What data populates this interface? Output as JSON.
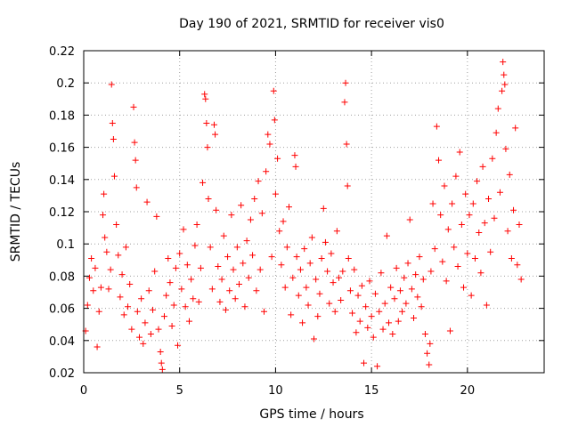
{
  "chart_data": {
    "type": "scatter",
    "title": "Day 190 of 2021, SRMTID for receiver vis0",
    "xlabel": "GPS time / hours",
    "ylabel": "SRMTID / TECUs",
    "xlim": [
      0,
      24
    ],
    "ylim": [
      0.02,
      0.22
    ],
    "xticks": [
      0,
      5,
      10,
      15,
      20
    ],
    "xtick_labels": [
      "0",
      "5",
      "10",
      "15",
      "20"
    ],
    "yticks": [
      0.02,
      0.04,
      0.06,
      0.08,
      0.1,
      0.12,
      0.14,
      0.16,
      0.18,
      0.2,
      0.22
    ],
    "ytick_labels": [
      "0.02",
      "0.04",
      "0.06",
      "0.08",
      "0.1",
      "0.12",
      "0.14",
      "0.16",
      "0.18",
      "0.2",
      "0.22"
    ],
    "grid": true,
    "marker": "+",
    "color": "#ff0000",
    "series": [
      {
        "name": "SRMTID",
        "points": [
          [
            0.1,
            0.046
          ],
          [
            0.2,
            0.062
          ],
          [
            0.3,
            0.079
          ],
          [
            0.4,
            0.091
          ],
          [
            0.5,
            0.071
          ],
          [
            0.6,
            0.085
          ],
          [
            0.7,
            0.036
          ],
          [
            0.8,
            0.058
          ],
          [
            0.9,
            0.073
          ],
          [
            1.0,
            0.118
          ],
          [
            1.05,
            0.131
          ],
          [
            1.1,
            0.104
          ],
          [
            1.2,
            0.095
          ],
          [
            1.3,
            0.072
          ],
          [
            1.4,
            0.084
          ],
          [
            1.5,
            0.175
          ],
          [
            1.45,
            0.199
          ],
          [
            1.55,
            0.165
          ],
          [
            1.6,
            0.142
          ],
          [
            1.7,
            0.112
          ],
          [
            1.8,
            0.093
          ],
          [
            1.9,
            0.067
          ],
          [
            2.0,
            0.081
          ],
          [
            2.1,
            0.056
          ],
          [
            2.2,
            0.098
          ],
          [
            2.3,
            0.061
          ],
          [
            2.4,
            0.075
          ],
          [
            2.5,
            0.047
          ],
          [
            2.6,
            0.185
          ],
          [
            2.65,
            0.163
          ],
          [
            2.7,
            0.152
          ],
          [
            2.75,
            0.135
          ],
          [
            2.8,
            0.058
          ],
          [
            2.9,
            0.042
          ],
          [
            3.0,
            0.066
          ],
          [
            3.1,
            0.038
          ],
          [
            3.2,
            0.051
          ],
          [
            3.3,
            0.126
          ],
          [
            3.4,
            0.071
          ],
          [
            3.5,
            0.044
          ],
          [
            3.6,
            0.059
          ],
          [
            3.7,
            0.083
          ],
          [
            3.8,
            0.117
          ],
          [
            3.9,
            0.047
          ],
          [
            4.0,
            0.033
          ],
          [
            4.05,
            0.026
          ],
          [
            4.1,
            0.022
          ],
          [
            4.2,
            0.055
          ],
          [
            4.3,
            0.068
          ],
          [
            4.4,
            0.091
          ],
          [
            4.5,
            0.076
          ],
          [
            4.6,
            0.049
          ],
          [
            4.7,
            0.062
          ],
          [
            4.8,
            0.085
          ],
          [
            4.9,
            0.037
          ],
          [
            5.0,
            0.094
          ],
          [
            5.1,
            0.072
          ],
          [
            5.2,
            0.109
          ],
          [
            5.3,
            0.061
          ],
          [
            5.4,
            0.087
          ],
          [
            5.5,
            0.052
          ],
          [
            5.6,
            0.078
          ],
          [
            5.7,
            0.066
          ],
          [
            5.8,
            0.099
          ],
          [
            5.9,
            0.112
          ],
          [
            6.0,
            0.064
          ],
          [
            6.1,
            0.085
          ],
          [
            6.2,
            0.138
          ],
          [
            6.3,
            0.193
          ],
          [
            6.35,
            0.19
          ],
          [
            6.4,
            0.175
          ],
          [
            6.45,
            0.16
          ],
          [
            6.5,
            0.128
          ],
          [
            6.6,
            0.098
          ],
          [
            6.7,
            0.072
          ],
          [
            6.8,
            0.174
          ],
          [
            6.85,
            0.168
          ],
          [
            6.9,
            0.121
          ],
          [
            7.0,
            0.086
          ],
          [
            7.1,
            0.064
          ],
          [
            7.2,
            0.078
          ],
          [
            7.3,
            0.105
          ],
          [
            7.4,
            0.059
          ],
          [
            7.5,
            0.092
          ],
          [
            7.6,
            0.071
          ],
          [
            7.7,
            0.118
          ],
          [
            7.8,
            0.084
          ],
          [
            7.9,
            0.066
          ],
          [
            8.0,
            0.098
          ],
          [
            8.1,
            0.075
          ],
          [
            8.2,
            0.124
          ],
          [
            8.3,
            0.088
          ],
          [
            8.4,
            0.061
          ],
          [
            8.5,
            0.102
          ],
          [
            8.6,
            0.079
          ],
          [
            8.7,
            0.115
          ],
          [
            8.8,
            0.093
          ],
          [
            8.9,
            0.128
          ],
          [
            9.0,
            0.071
          ],
          [
            9.1,
            0.139
          ],
          [
            9.2,
            0.084
          ],
          [
            9.3,
            0.119
          ],
          [
            9.4,
            0.058
          ],
          [
            9.5,
            0.145
          ],
          [
            9.6,
            0.168
          ],
          [
            9.7,
            0.162
          ],
          [
            9.8,
            0.092
          ],
          [
            9.9,
            0.195
          ],
          [
            9.95,
            0.177
          ],
          [
            10.0,
            0.131
          ],
          [
            10.1,
            0.153
          ],
          [
            10.2,
            0.108
          ],
          [
            10.3,
            0.087
          ],
          [
            10.4,
            0.114
          ],
          [
            10.5,
            0.073
          ],
          [
            10.6,
            0.098
          ],
          [
            10.7,
            0.123
          ],
          [
            10.8,
            0.056
          ],
          [
            10.9,
            0.079
          ],
          [
            11.0,
            0.155
          ],
          [
            11.05,
            0.148
          ],
          [
            11.1,
            0.092
          ],
          [
            11.2,
            0.068
          ],
          [
            11.3,
            0.084
          ],
          [
            11.4,
            0.051
          ],
          [
            11.5,
            0.097
          ],
          [
            11.6,
            0.073
          ],
          [
            11.7,
            0.062
          ],
          [
            11.8,
            0.088
          ],
          [
            11.9,
            0.104
          ],
          [
            12.0,
            0.041
          ],
          [
            12.1,
            0.078
          ],
          [
            12.2,
            0.055
          ],
          [
            12.3,
            0.069
          ],
          [
            12.4,
            0.091
          ],
          [
            12.5,
            0.122
          ],
          [
            12.6,
            0.101
          ],
          [
            12.7,
            0.083
          ],
          [
            12.8,
            0.063
          ],
          [
            12.9,
            0.094
          ],
          [
            13.0,
            0.076
          ],
          [
            13.1,
            0.058
          ],
          [
            13.2,
            0.108
          ],
          [
            13.3,
            0.079
          ],
          [
            13.4,
            0.065
          ],
          [
            13.5,
            0.083
          ],
          [
            13.6,
            0.188
          ],
          [
            13.65,
            0.2
          ],
          [
            13.7,
            0.162
          ],
          [
            13.75,
            0.136
          ],
          [
            13.8,
            0.091
          ],
          [
            13.9,
            0.071
          ],
          [
            14.0,
            0.057
          ],
          [
            14.1,
            0.084
          ],
          [
            14.2,
            0.045
          ],
          [
            14.3,
            0.068
          ],
          [
            14.4,
            0.052
          ],
          [
            14.5,
            0.074
          ],
          [
            14.6,
            0.026
          ],
          [
            14.7,
            0.061
          ],
          [
            14.8,
            0.048
          ],
          [
            14.9,
            0.077
          ],
          [
            15.0,
            0.055
          ],
          [
            15.1,
            0.042
          ],
          [
            15.2,
            0.069
          ],
          [
            15.3,
            0.024
          ],
          [
            15.4,
            0.058
          ],
          [
            15.5,
            0.082
          ],
          [
            15.6,
            0.047
          ],
          [
            15.7,
            0.063
          ],
          [
            15.8,
            0.105
          ],
          [
            15.9,
            0.051
          ],
          [
            16.0,
            0.073
          ],
          [
            16.1,
            0.044
          ],
          [
            16.2,
            0.066
          ],
          [
            16.3,
            0.085
          ],
          [
            16.4,
            0.052
          ],
          [
            16.5,
            0.071
          ],
          [
            16.6,
            0.058
          ],
          [
            16.7,
            0.079
          ],
          [
            16.8,
            0.063
          ],
          [
            16.9,
            0.088
          ],
          [
            17.0,
            0.115
          ],
          [
            17.1,
            0.072
          ],
          [
            17.2,
            0.054
          ],
          [
            17.3,
            0.081
          ],
          [
            17.4,
            0.067
          ],
          [
            17.5,
            0.092
          ],
          [
            17.6,
            0.061
          ],
          [
            17.7,
            0.078
          ],
          [
            17.8,
            0.044
          ],
          [
            17.9,
            0.032
          ],
          [
            18.0,
            0.025
          ],
          [
            18.05,
            0.038
          ],
          [
            18.1,
            0.083
          ],
          [
            18.2,
            0.125
          ],
          [
            18.3,
            0.097
          ],
          [
            18.4,
            0.173
          ],
          [
            18.5,
            0.152
          ],
          [
            18.6,
            0.118
          ],
          [
            18.7,
            0.089
          ],
          [
            18.8,
            0.136
          ],
          [
            18.9,
            0.077
          ],
          [
            19.0,
            0.109
          ],
          [
            19.1,
            0.046
          ],
          [
            19.2,
            0.125
          ],
          [
            19.3,
            0.098
          ],
          [
            19.4,
            0.142
          ],
          [
            19.5,
            0.086
          ],
          [
            19.6,
            0.157
          ],
          [
            19.7,
            0.112
          ],
          [
            19.8,
            0.073
          ],
          [
            19.9,
            0.131
          ],
          [
            20.0,
            0.094
          ],
          [
            20.1,
            0.118
          ],
          [
            20.2,
            0.068
          ],
          [
            20.3,
            0.125
          ],
          [
            20.4,
            0.091
          ],
          [
            20.5,
            0.139
          ],
          [
            20.6,
            0.107
          ],
          [
            20.7,
            0.082
          ],
          [
            20.8,
            0.148
          ],
          [
            20.9,
            0.113
          ],
          [
            21.0,
            0.062
          ],
          [
            21.1,
            0.128
          ],
          [
            21.2,
            0.095
          ],
          [
            21.3,
            0.153
          ],
          [
            21.4,
            0.116
          ],
          [
            21.5,
            0.169
          ],
          [
            21.6,
            0.184
          ],
          [
            21.7,
            0.132
          ],
          [
            21.8,
            0.195
          ],
          [
            21.85,
            0.213
          ],
          [
            21.9,
            0.205
          ],
          [
            21.95,
            0.199
          ],
          [
            22.0,
            0.159
          ],
          [
            22.1,
            0.108
          ],
          [
            22.2,
            0.143
          ],
          [
            22.3,
            0.091
          ],
          [
            22.4,
            0.121
          ],
          [
            22.5,
            0.172
          ],
          [
            22.6,
            0.087
          ],
          [
            22.7,
            0.112
          ],
          [
            22.8,
            0.078
          ]
        ]
      }
    ]
  }
}
